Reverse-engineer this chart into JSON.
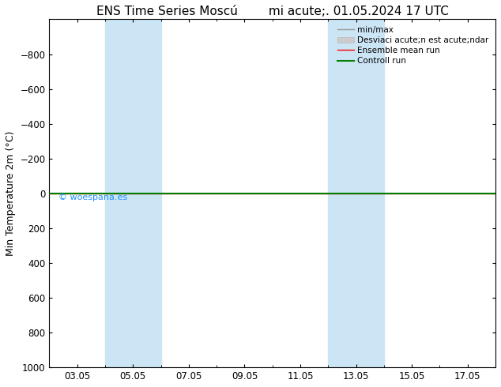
{
  "title": "ENS Time Series Moscú        mi acute;. 01.05.2024 17 UTC",
  "ylabel": "Min Temperature 2m (°C)",
  "ylim": [
    -1000,
    1000
  ],
  "yticks": [
    -800,
    -600,
    -400,
    -200,
    0,
    200,
    400,
    600,
    800,
    1000
  ],
  "xtick_labels": [
    "03.05",
    "05.05",
    "07.05",
    "09.05",
    "11.05",
    "13.05",
    "15.05",
    "17.05"
  ],
  "xtick_positions": [
    1,
    3,
    5,
    7,
    9,
    11,
    13,
    15
  ],
  "xlim": [
    0,
    16
  ],
  "shaded_bands": [
    {
      "x_start": 2,
      "x_end": 4
    },
    {
      "x_start": 10,
      "x_end": 12
    }
  ],
  "green_line_y": 0,
  "red_line_y": 0,
  "watermark": "© woespana.es",
  "watermark_color": "#1e90ff",
  "background_color": "#ffffff",
  "plot_bg_color": "#ffffff",
  "band_color": "#cce5f5",
  "band_alpha": 1.0,
  "title_fontsize": 11,
  "axis_label_fontsize": 9,
  "tick_fontsize": 8.5,
  "invert_y": true
}
